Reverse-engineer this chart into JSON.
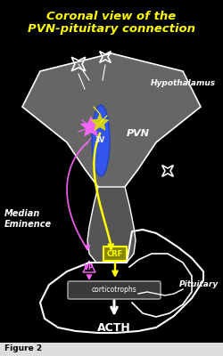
{
  "title_line1": "Coronal view of the",
  "title_line2": "PVN-pituitary connection",
  "title_color": "#FFFF00",
  "bg_color": "#000000",
  "fig_label": "Figure 2",
  "labels": {
    "hypothalamus": "Hypothalamus",
    "pvn": "PVN",
    "3v": "3V",
    "median_eminence": "Median\nEminence",
    "pituitary": "Pituitary",
    "acth": "ACTH",
    "vp": "VP",
    "crf": "CRF",
    "corticotrophs": "corticotrophs"
  },
  "colors": {
    "white": "#FFFFFF",
    "yellow": "#FFFF00",
    "magenta": "#FF66FF",
    "blue": "#4466EE",
    "gray": "#777777",
    "dark_gray": "#444444",
    "mid_gray": "#999999",
    "crf_bg": "#888800"
  }
}
